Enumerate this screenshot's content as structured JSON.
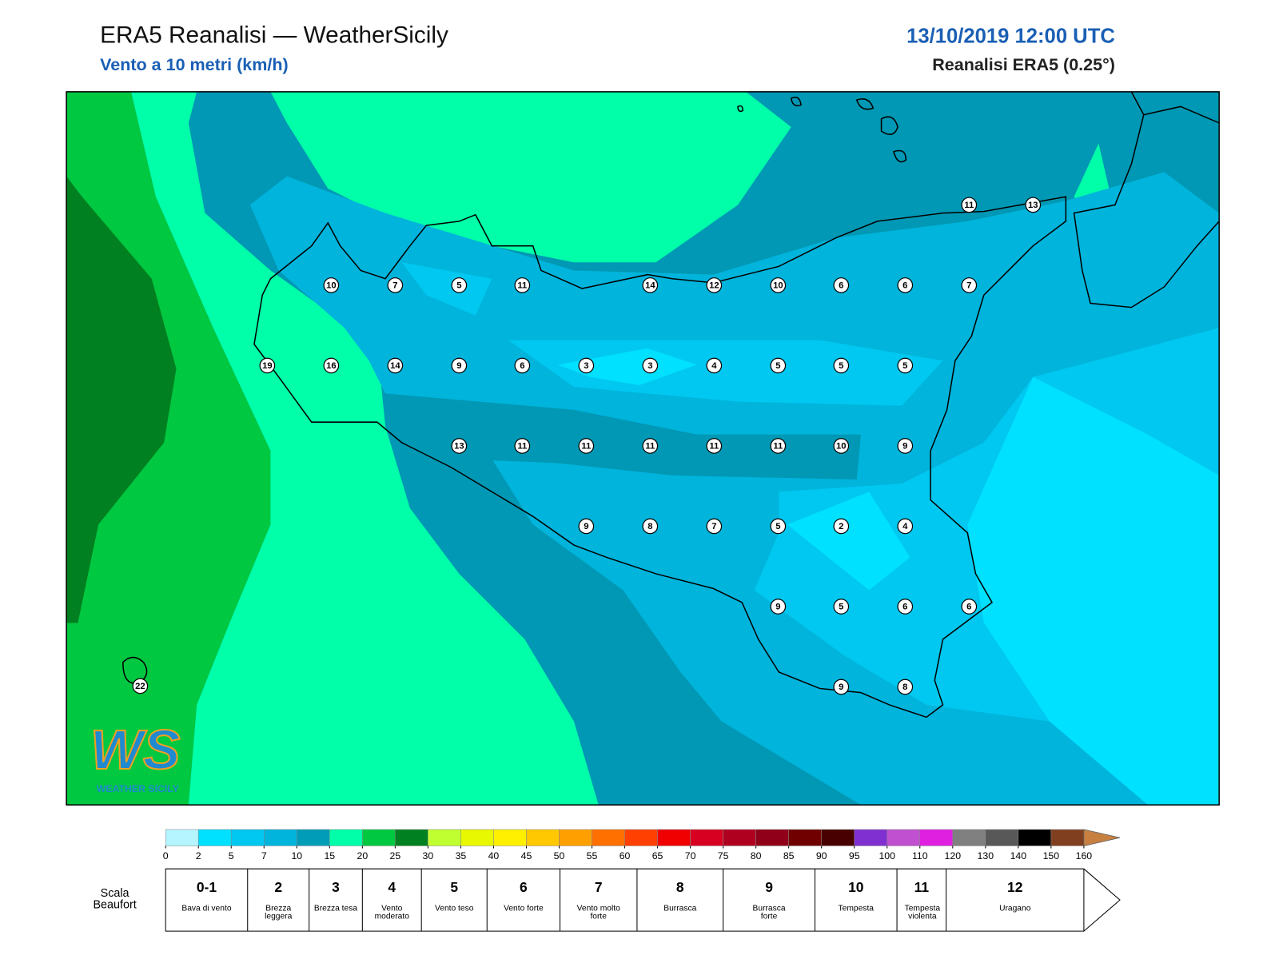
{
  "header": {
    "title": "ERA5 Reanalisi — WeatherSicily",
    "subtitle": "Vento a 10 metri (km/h)",
    "datetime": "13/10/2019 12:00 UTC",
    "source": "Reanalisi ERA5 (0.25°)"
  },
  "map": {
    "stations": [
      11,
      13,
      10,
      7,
      5,
      11,
      14,
      12,
      10,
      6,
      6,
      7,
      19,
      16,
      14,
      9,
      6,
      3,
      3,
      4,
      5,
      5,
      5,
      13,
      11,
      11,
      11,
      11,
      11,
      10,
      9,
      9,
      8,
      7,
      5,
      2,
      4,
      9,
      5,
      6,
      6,
      9,
      8,
      22
    ]
  },
  "logo": {
    "mark": "WS",
    "text": "WEATHER SICILY"
  },
  "colorbar": {
    "ticks": [
      0,
      2,
      5,
      7,
      10,
      15,
      20,
      25,
      30,
      35,
      40,
      45,
      50,
      55,
      60,
      65,
      70,
      75,
      80,
      85,
      90,
      95,
      100,
      110,
      120,
      130,
      140,
      150,
      160
    ],
    "colors": [
      "#b4f5ff",
      "#00e0ff",
      "#00c8f0",
      "#00b4dc",
      "#009cb8",
      "#00ffa8",
      "#00c840",
      "#008020",
      "#c0ff30",
      "#e8f800",
      "#fff000",
      "#ffc800",
      "#ffa000",
      "#ff7000",
      "#ff4000",
      "#f00000",
      "#d80020",
      "#b00020",
      "#900018",
      "#700000",
      "#480000",
      "#8030d0",
      "#c050d0",
      "#e020e0",
      "#808080",
      "#585858",
      "#000000",
      "#804020",
      "#c88040"
    ]
  },
  "beaufort": {
    "label": "Scala Beaufort",
    "levels": [
      {
        "force": "0-1",
        "description": "Bava di vento"
      },
      {
        "force": 2,
        "description": "Brezza leggera"
      },
      {
        "force": 3,
        "description": "Brezza tesa"
      },
      {
        "force": 4,
        "description": "Vento moderato"
      },
      {
        "force": 5,
        "description": "Vento teso"
      },
      {
        "force": 6,
        "description": "Vento forte"
      },
      {
        "force": 7,
        "description": "Vento molto forte"
      },
      {
        "force": 8,
        "description": "Burrasca"
      },
      {
        "force": 9,
        "description": "Burrasca forte"
      },
      {
        "force": 10,
        "description": "Tempesta"
      },
      {
        "force": 11,
        "description": "Tempesta violenta"
      },
      {
        "force": 12,
        "description": "Uragano"
      }
    ]
  }
}
